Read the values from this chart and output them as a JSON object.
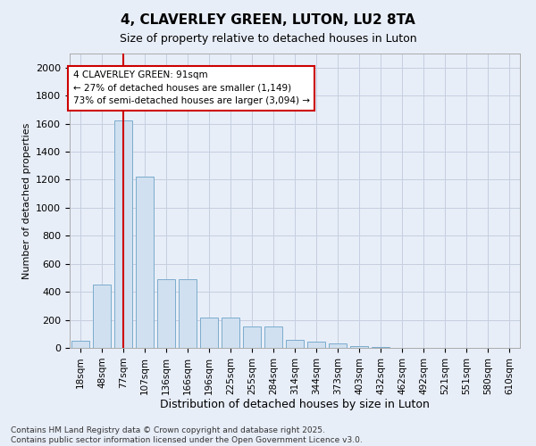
{
  "title1": "4, CLAVERLEY GREEN, LUTON, LU2 8TA",
  "title2": "Size of property relative to detached houses in Luton",
  "xlabel": "Distribution of detached houses by size in Luton",
  "ylabel": "Number of detached properties",
  "categories": [
    "18sqm",
    "48sqm",
    "77sqm",
    "107sqm",
    "136sqm",
    "166sqm",
    "196sqm",
    "225sqm",
    "255sqm",
    "284sqm",
    "314sqm",
    "344sqm",
    "373sqm",
    "403sqm",
    "432sqm",
    "462sqm",
    "492sqm",
    "521sqm",
    "551sqm",
    "580sqm",
    "610sqm"
  ],
  "values": [
    50,
    450,
    1620,
    1220,
    490,
    490,
    215,
    215,
    155,
    155,
    60,
    45,
    30,
    12,
    4,
    2,
    1,
    0,
    0,
    0,
    0
  ],
  "bar_color": "#d0e0f0",
  "bar_edge_color": "#7aaccc",
  "red_line_x": 2,
  "annotation_title": "4 CLAVERLEY GREEN: 91sqm",
  "annotation_line1": "← 27% of detached houses are smaller (1,149)",
  "annotation_line2": "73% of semi-detached houses are larger (3,094) →",
  "annotation_box_color": "#ffffff",
  "annotation_box_edge": "#cc0000",
  "red_line_color": "#cc0000",
  "ylim": [
    0,
    2100
  ],
  "yticks": [
    0,
    200,
    400,
    600,
    800,
    1000,
    1200,
    1400,
    1600,
    1800,
    2000
  ],
  "grid_color": "#c5cfe0",
  "footnote1": "Contains HM Land Registry data © Crown copyright and database right 2025.",
  "footnote2": "Contains public sector information licensed under the Open Government Licence v3.0.",
  "bg_color": "#e8eef8"
}
